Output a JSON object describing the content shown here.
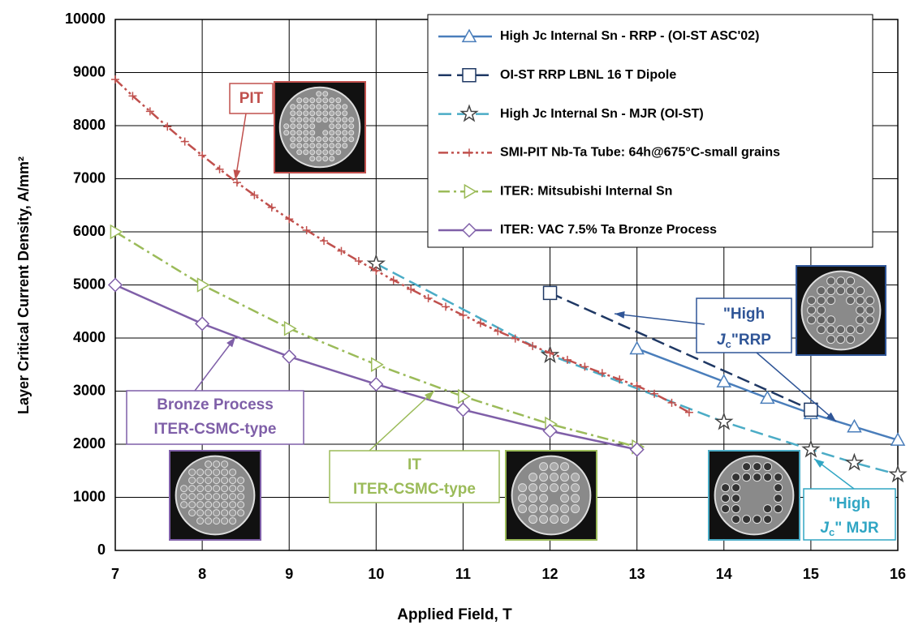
{
  "chart_data": {
    "type": "line",
    "xlabel": "Applied Field, T",
    "ylabel": "Layer Critical Current Density, A/mm²",
    "xlim": [
      7,
      16
    ],
    "xticks": [
      7,
      8,
      9,
      10,
      11,
      12,
      13,
      14,
      15,
      16
    ],
    "ylim": [
      0,
      10000
    ],
    "yticks": [
      0,
      1000,
      2000,
      3000,
      4000,
      5000,
      6000,
      7000,
      8000,
      9000,
      10000
    ],
    "grid": true,
    "legend": "upper right",
    "series": [
      {
        "name": "High Jc Internal Sn - RRP - (OI-ST ASC'02)",
        "color": "#4a7ebb",
        "dash": "solid",
        "marker": "triangle",
        "x": [
          13,
          14,
          14.5,
          15,
          15.5,
          16
        ],
        "values": [
          3800,
          3180,
          2870,
          2580,
          2330,
          2080
        ]
      },
      {
        "name": "OI-ST RRP LBNL 16 T Dipole",
        "color": "#1f3864",
        "dash": "dashed",
        "marker": "square",
        "x": [
          12,
          15
        ],
        "values": [
          4850,
          2650
        ]
      },
      {
        "name": "High Jc Internal Sn - MJR (OI-ST)",
        "color": "#4bacc6",
        "dash": "dashed",
        "marker": "star",
        "x": [
          10,
          12,
          14,
          15,
          15.5,
          16
        ],
        "values": [
          5400,
          3680,
          2420,
          1900,
          1650,
          1430
        ]
      },
      {
        "name": "SMI-PIT Nb-Ta Tube: 64h@675°C-small  grains",
        "color": "#c0504d",
        "dash": "dashdotdot",
        "marker": "plus",
        "x": [
          7,
          7.2,
          7.4,
          7.6,
          7.8,
          8,
          8.2,
          8.4,
          8.6,
          8.8,
          9,
          9.2,
          9.4,
          9.6,
          9.8,
          10,
          10.2,
          10.4,
          10.6,
          10.8,
          11,
          11.2,
          11.4,
          11.6,
          11.8,
          12,
          12.2,
          12.4,
          12.6,
          12.8,
          13,
          13.2,
          13.4,
          13.6
        ],
        "values": [
          8870,
          8560,
          8270,
          7980,
          7700,
          7440,
          7180,
          6930,
          6690,
          6460,
          6240,
          6030,
          5830,
          5640,
          5450,
          5270,
          5090,
          4920,
          4750,
          4590,
          4430,
          4280,
          4130,
          3990,
          3850,
          3720,
          3590,
          3460,
          3340,
          3220,
          3100,
          2950,
          2780,
          2600
        ]
      },
      {
        "name": "ITER: Mitsubishi Internal Sn",
        "color": "#9bbb59",
        "dash": "dashdot",
        "marker": "rtriangle",
        "x": [
          7,
          8,
          9,
          10,
          11,
          12,
          13
        ],
        "values": [
          6000,
          5000,
          4180,
          3500,
          2900,
          2380,
          1950
        ]
      },
      {
        "name": "ITER: VAC 7.5% Ta Bronze Process",
        "color": "#7f5fa8",
        "dash": "solid",
        "marker": "diamond",
        "x": [
          7,
          8,
          9,
          10,
          11,
          12,
          13
        ],
        "values": [
          5000,
          4270,
          3650,
          3130,
          2650,
          2250,
          1900
        ]
      }
    ],
    "annotations": [
      {
        "lines": [
          [
            "PIT"
          ]
        ],
        "color": "#c0504d"
      },
      {
        "lines": [
          [
            "Bronze Process"
          ],
          [
            "ITER-CSMC-type"
          ]
        ],
        "color": "#7f5fa8"
      },
      {
        "lines": [
          [
            "IT"
          ],
          [
            "ITER-CSMC-type"
          ]
        ],
        "color": "#9bbb59"
      },
      {
        "lines": [
          [
            "\"High"
          ],
          [
            "J",
            "c",
            "\"RRP"
          ]
        ],
        "color": "#2f5597"
      },
      {
        "lines": [
          [
            "\"High"
          ],
          [
            "J",
            "c",
            "\" MJR"
          ]
        ],
        "color": "#31a6c4"
      }
    ]
  }
}
